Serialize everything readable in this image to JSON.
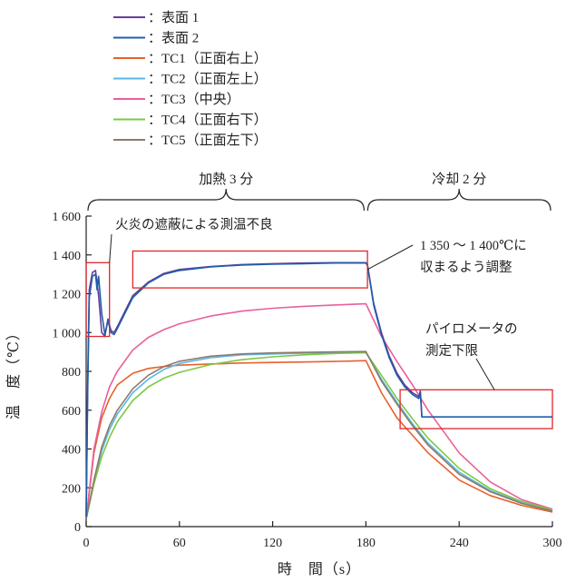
{
  "chart_data": {
    "type": "line",
    "xlabel": "時　間（s）",
    "ylabel": "温　度（℃）",
    "xlim": [
      0,
      300
    ],
    "ylim": [
      0,
      1600
    ],
    "xticks": [
      0,
      60,
      120,
      180,
      240,
      300
    ],
    "xtick_labels": [
      "0",
      "60",
      "120",
      "180",
      "240",
      "300"
    ],
    "yticks": [
      0,
      200,
      400,
      600,
      800,
      1000,
      1200,
      1400,
      1600
    ],
    "ytick_labels": [
      "0",
      "200",
      "400",
      "600",
      "800",
      "1 000",
      "1 200",
      "1 400",
      "1 600"
    ],
    "grid": false,
    "legend_position": "top-left",
    "phases": [
      {
        "label": "加熱 3 分",
        "x_start": 0,
        "x_end": 180
      },
      {
        "label": "冷却 2 分",
        "x_start": 180,
        "x_end": 300
      }
    ],
    "annotations": [
      {
        "text": "火炎の遮蔽による測温不良",
        "box_x": [
          0,
          15
        ],
        "box_y": [
          980,
          1360
        ]
      },
      {
        "text": [
          "1 350 ～ 1 400℃に",
          "収まるよう調整"
        ],
        "box_x": [
          30,
          181
        ],
        "box_y": [
          1230,
          1420
        ]
      },
      {
        "text": [
          "パイロメータの",
          "測定下限"
        ],
        "box_x": [
          202,
          300
        ],
        "box_y": [
          505,
          705
        ]
      }
    ],
    "series": [
      {
        "name": "：表面 1",
        "color": "#6a3d9a",
        "x": [
          0,
          1,
          2,
          4,
          6,
          8,
          10,
          12,
          14,
          16,
          18,
          20,
          25,
          30,
          40,
          50,
          60,
          80,
          100,
          120,
          140,
          160,
          180,
          181,
          185,
          190,
          195,
          200,
          205,
          210,
          214,
          215,
          216
        ],
        "y": [
          50,
          750,
          1220,
          1310,
          1320,
          1190,
          1000,
          980,
          1070,
          1010,
          1000,
          1030,
          1110,
          1190,
          1260,
          1305,
          1325,
          1340,
          1350,
          1355,
          1358,
          1360,
          1360,
          1350,
          1150,
          1000,
          880,
          790,
          730,
          690,
          670,
          700,
          565
        ]
      },
      {
        "name": "：表面 2",
        "color": "#1f5fa8",
        "x": [
          0,
          1,
          2,
          4,
          6,
          7,
          8,
          10,
          12,
          14,
          16,
          18,
          20,
          25,
          30,
          40,
          50,
          60,
          80,
          100,
          120,
          140,
          160,
          180,
          181,
          185,
          190,
          195,
          200,
          205,
          210,
          214,
          215,
          216,
          300
        ],
        "y": [
          50,
          700,
          1180,
          1290,
          1300,
          1220,
          1290,
          1100,
          990,
          1060,
          1000,
          990,
          1020,
          1100,
          1180,
          1255,
          1300,
          1320,
          1338,
          1348,
          1352,
          1355,
          1358,
          1358,
          1345,
          1140,
          990,
          870,
          780,
          720,
          680,
          660,
          690,
          565,
          565
        ]
      },
      {
        "name": "：TC1（正面右上）",
        "color": "#e8602c",
        "x": [
          0,
          5,
          10,
          15,
          20,
          30,
          40,
          50,
          60,
          80,
          100,
          120,
          140,
          160,
          180,
          190,
          200,
          210,
          220,
          240,
          260,
          280,
          300
        ],
        "y": [
          40,
          380,
          560,
          660,
          730,
          790,
          815,
          825,
          832,
          838,
          843,
          846,
          848,
          851,
          855,
          690,
          560,
          470,
          380,
          240,
          160,
          110,
          75
        ]
      },
      {
        "name": "：TC2（正面左上）",
        "color": "#5bb8e8",
        "x": [
          0,
          5,
          10,
          15,
          20,
          30,
          40,
          50,
          60,
          80,
          100,
          120,
          140,
          160,
          180,
          190,
          200,
          210,
          220,
          240,
          260,
          280,
          300
        ],
        "y": [
          40,
          230,
          390,
          500,
          580,
          690,
          760,
          810,
          840,
          870,
          885,
          890,
          893,
          896,
          898,
          760,
          640,
          530,
          430,
          280,
          185,
          125,
          85
        ]
      },
      {
        "name": "：TC3（中央）",
        "color": "#e8609c",
        "x": [
          0,
          5,
          10,
          15,
          20,
          30,
          40,
          50,
          60,
          80,
          100,
          120,
          140,
          160,
          180,
          190,
          200,
          210,
          220,
          240,
          260,
          280,
          300
        ],
        "y": [
          40,
          400,
          590,
          720,
          800,
          910,
          975,
          1015,
          1045,
          1085,
          1110,
          1125,
          1135,
          1142,
          1148,
          980,
          850,
          730,
          600,
          380,
          230,
          140,
          90
        ]
      },
      {
        "name": "：TC4（正面右下）",
        "color": "#7ac943",
        "x": [
          0,
          5,
          10,
          15,
          20,
          30,
          40,
          50,
          60,
          80,
          100,
          120,
          140,
          160,
          180,
          190,
          200,
          210,
          220,
          240,
          260,
          280,
          300
        ],
        "y": [
          40,
          220,
          360,
          460,
          540,
          650,
          720,
          765,
          795,
          835,
          860,
          875,
          885,
          892,
          896,
          780,
          660,
          555,
          455,
          300,
          195,
          130,
          85
        ]
      },
      {
        "name": "：TC5（正面左下）",
        "color": "#8c7a6b",
        "x": [
          0,
          5,
          10,
          15,
          20,
          30,
          40,
          50,
          60,
          80,
          100,
          120,
          140,
          160,
          180,
          190,
          200,
          210,
          220,
          240,
          260,
          280,
          300
        ],
        "y": [
          40,
          240,
          410,
          520,
          600,
          710,
          780,
          825,
          852,
          878,
          890,
          895,
          898,
          900,
          902,
          750,
          630,
          520,
          420,
          270,
          180,
          120,
          80
        ]
      }
    ]
  }
}
